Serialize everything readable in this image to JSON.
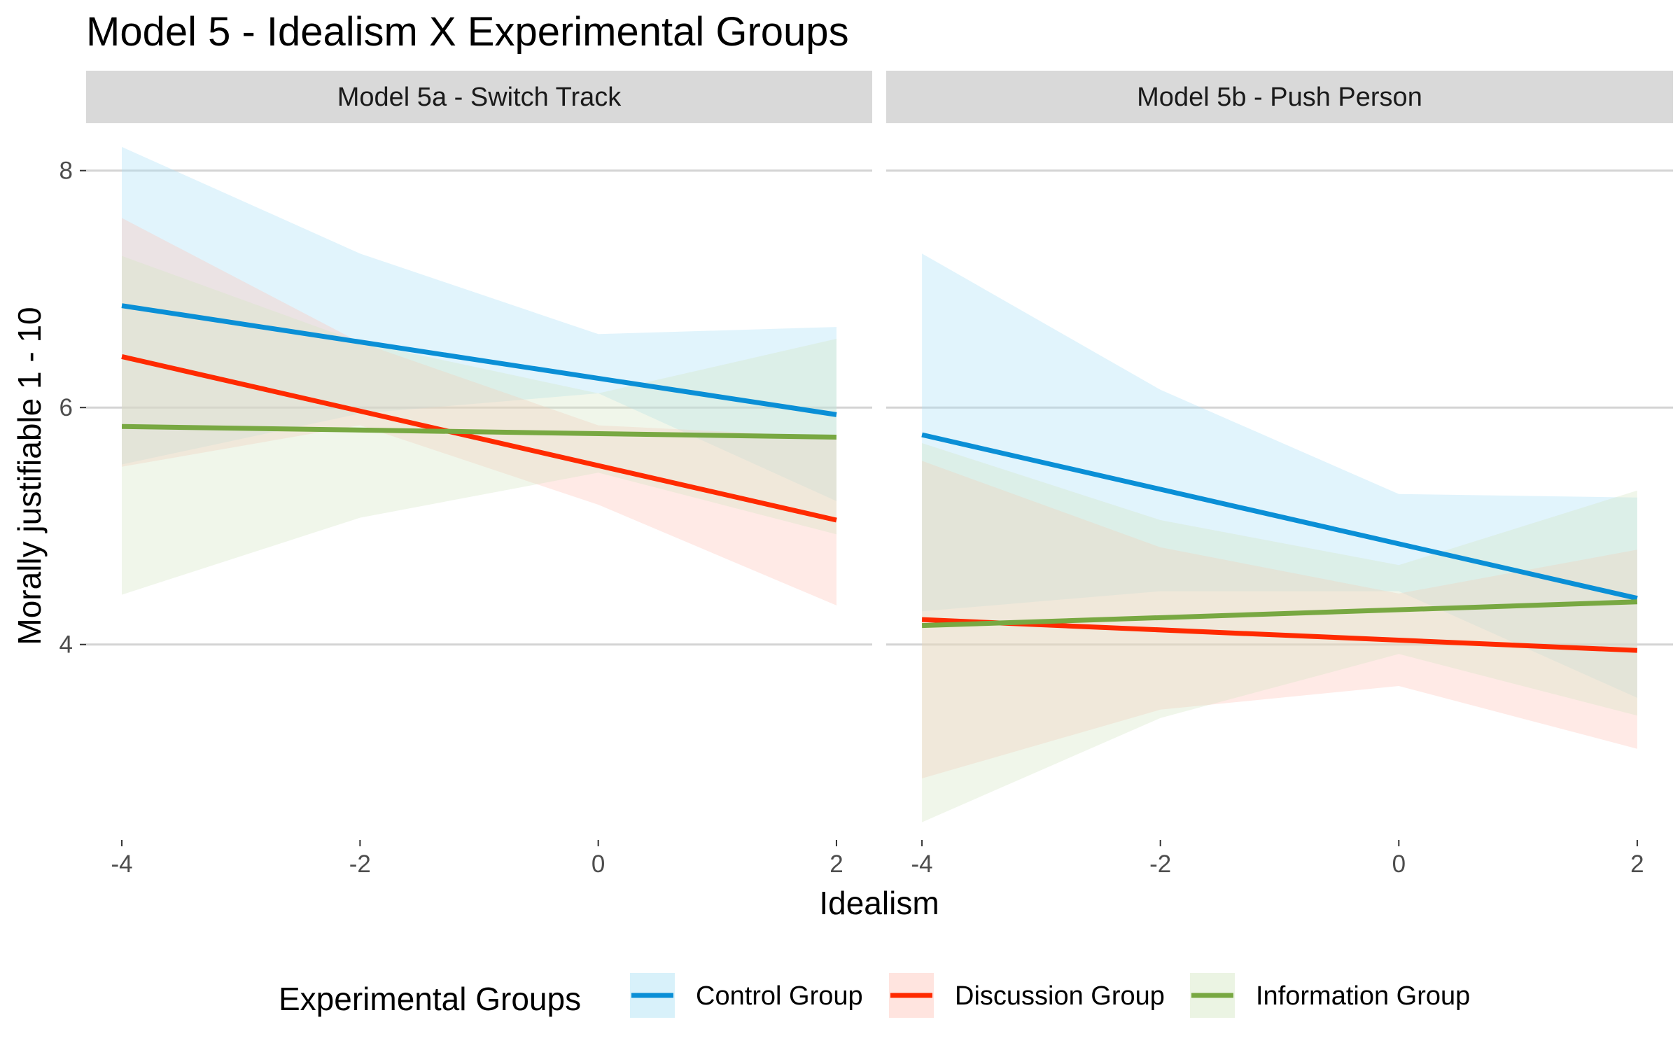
{
  "chart_data": {
    "type": "line",
    "title": "Model 5 - Idealism X Experimental Groups",
    "xlabel": "Idealism",
    "ylabel": "Morally justifiable 1 - 10",
    "x_ticks": [
      -4,
      -2,
      0,
      2
    ],
    "y_ticks": [
      4,
      6,
      8
    ],
    "xlim": [
      -4.3,
      2.3
    ],
    "ylim": [
      2.35,
      8.4
    ],
    "grid": true,
    "legend": {
      "title": "Experimental Groups",
      "placement": "bottom",
      "entries": [
        "Control Group",
        "Discussion Group",
        "Information Group"
      ]
    },
    "colors": {
      "Control Group": "#0a8fd6",
      "Discussion Group": "#ff2a00",
      "Information Group": "#78a842"
    },
    "band_fills": {
      "Control Group": "#a9dff5",
      "Discussion Group": "#ffc4b8",
      "Information Group": "#d3e6c2"
    },
    "panels": [
      {
        "label": "Model 5a - Switch Track",
        "x": [
          -4,
          -2,
          0,
          2
        ],
        "series": [
          {
            "name": "Control Group",
            "line": [
              [
                -4,
                6.86
              ],
              [
                2,
                5.94
              ]
            ],
            "lower": [
              5.52,
              5.95,
              6.12,
              5.21
            ],
            "upper": [
              8.2,
              7.3,
              6.62,
              6.68
            ]
          },
          {
            "name": "Discussion Group",
            "line": [
              [
                -4,
                6.43
              ],
              [
                2,
                5.05
              ]
            ],
            "lower": [
              5.5,
              5.85,
              5.18,
              4.33
            ],
            "upper": [
              7.6,
              6.55,
              5.85,
              5.75
            ]
          },
          {
            "name": "Information Group",
            "line": [
              [
                -4,
                5.84
              ],
              [
                2,
                5.75
              ]
            ],
            "lower": [
              4.42,
              5.07,
              5.45,
              4.93
            ],
            "upper": [
              7.28,
              6.55,
              6.12,
              6.58
            ]
          }
        ]
      },
      {
        "label": "Model 5b - Push Person",
        "x": [
          -4,
          -2,
          0,
          2
        ],
        "series": [
          {
            "name": "Control Group",
            "line": [
              [
                -4,
                5.77
              ],
              [
                2,
                4.39
              ]
            ],
            "lower": [
              4.28,
              4.45,
              4.45,
              3.55
            ],
            "upper": [
              7.3,
              6.15,
              5.27,
              5.24
            ]
          },
          {
            "name": "Discussion Group",
            "line": [
              [
                -4,
                4.21
              ],
              [
                2,
                3.95
              ]
            ],
            "lower": [
              2.87,
              3.45,
              3.65,
              3.12
            ],
            "upper": [
              5.55,
              4.82,
              4.43,
              4.8
            ]
          },
          {
            "name": "Information Group",
            "line": [
              [
                -4,
                4.16
              ],
              [
                2,
                4.36
              ]
            ],
            "lower": [
              2.5,
              3.38,
              3.92,
              3.4
            ],
            "upper": [
              5.7,
              5.05,
              4.67,
              5.3
            ]
          }
        ]
      }
    ]
  }
}
